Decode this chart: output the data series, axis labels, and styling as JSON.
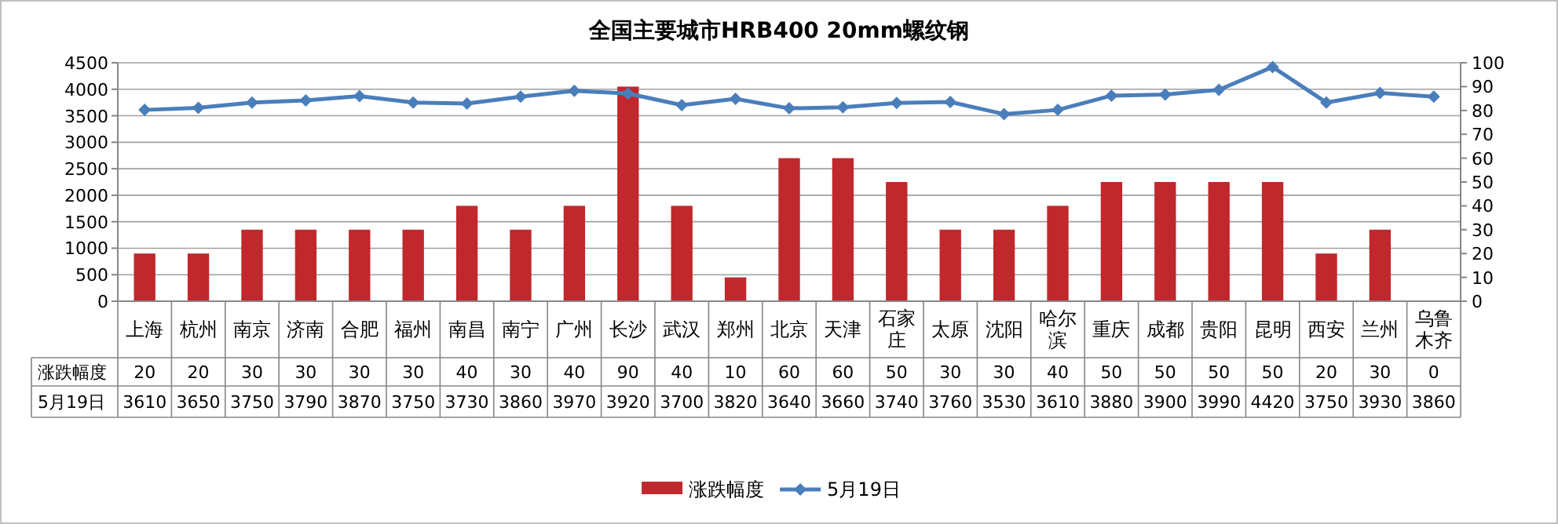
{
  "chart_data": {
    "type": "bar",
    "title": "全国主要城市HRB400 20mm螺纹钢",
    "categories": [
      "上海",
      "杭州",
      "南京",
      "济南",
      "合肥",
      "福州",
      "南昌",
      "南宁",
      "广州",
      "长沙",
      "武汉",
      "郑州",
      "北京",
      "天津",
      "石家庄",
      "太原",
      "沈阳",
      "哈尔滨",
      "重庆",
      "成都",
      "贵阳",
      "昆明",
      "西安",
      "兰州",
      "乌鲁木齐"
    ],
    "series": [
      {
        "name": "涨跌幅度",
        "axis": "y2",
        "color": "#c0282d",
        "values": [
          20,
          20,
          30,
          30,
          30,
          30,
          40,
          30,
          40,
          90,
          40,
          10,
          60,
          60,
          50,
          30,
          30,
          40,
          50,
          50,
          50,
          50,
          20,
          30,
          0
        ]
      },
      {
        "name": "5月19日",
        "type": "line",
        "color": "#4a7ebb",
        "marker": "diamond",
        "values": [
          3610,
          3650,
          3750,
          3790,
          3870,
          3750,
          3730,
          3860,
          3970,
          3920,
          3700,
          3820,
          3640,
          3660,
          3740,
          3760,
          3530,
          3610,
          3880,
          3900,
          3990,
          4420,
          3750,
          3930,
          3860
        ]
      }
    ],
    "ylim": [
      0,
      4500
    ],
    "yticks": [
      0,
      500,
      1000,
      1500,
      2000,
      2500,
      3000,
      3500,
      4000,
      4500
    ],
    "y2lim": [
      0,
      100
    ],
    "y2ticks": [
      0,
      10,
      20,
      30,
      40,
      50,
      60,
      70,
      80,
      90,
      100
    ],
    "grid": "y",
    "legend": "bottom",
    "data_labels": true
  }
}
